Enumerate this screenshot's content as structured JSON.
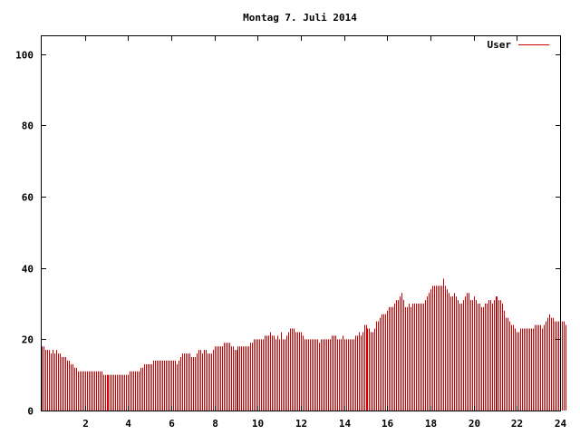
{
  "chart_data": {
    "type": "bar",
    "title": "Montag 7. Juli 2014",
    "xlabel": "",
    "ylabel": "",
    "xlim": [
      0,
      24
    ],
    "ylim": [
      0,
      105
    ],
    "x_ticks": [
      2,
      4,
      6,
      8,
      10,
      12,
      14,
      16,
      18,
      20,
      22,
      24
    ],
    "y_ticks": [
      0,
      20,
      40,
      60,
      80,
      100
    ],
    "grid": false,
    "legend": "top-right",
    "series": [
      {
        "name": "User",
        "color": "#cc0000",
        "step_minutes": 5,
        "values": [
          18,
          18,
          17,
          17,
          17,
          16,
          17,
          16,
          17,
          16,
          16,
          15,
          15,
          15,
          14,
          14,
          13,
          13,
          12,
          12,
          11,
          11,
          11,
          11,
          11,
          11,
          11,
          11,
          11,
          11,
          11,
          11,
          11,
          11,
          10,
          10,
          10,
          10,
          10,
          10,
          10,
          10,
          10,
          10,
          10,
          10,
          10,
          10,
          10,
          11,
          11,
          11,
          11,
          11,
          11,
          12,
          12,
          13,
          13,
          13,
          13,
          13,
          14,
          14,
          14,
          14,
          14,
          14,
          14,
          14,
          14,
          14,
          14,
          14,
          14,
          13,
          14,
          15,
          16,
          16,
          16,
          16,
          16,
          15,
          15,
          15,
          16,
          17,
          17,
          16,
          17,
          17,
          16,
          16,
          16,
          17,
          18,
          18,
          18,
          18,
          18,
          19,
          19,
          19,
          19,
          18,
          18,
          17,
          17,
          18,
          18,
          18,
          18,
          18,
          18,
          18,
          19,
          19,
          20,
          20,
          20,
          20,
          20,
          20,
          21,
          21,
          21,
          22,
          21,
          21,
          20,
          21,
          20,
          22,
          20,
          20,
          21,
          22,
          23,
          23,
          23,
          22,
          22,
          22,
          22,
          21,
          20,
          20,
          20,
          20,
          20,
          20,
          20,
          20,
          19,
          20,
          20,
          20,
          20,
          20,
          20,
          21,
          21,
          21,
          20,
          20,
          20,
          21,
          20,
          20,
          20,
          20,
          20,
          20,
          21,
          21,
          22,
          21,
          22,
          24,
          24,
          23,
          23,
          22,
          22,
          23,
          25,
          25,
          26,
          27,
          27,
          27,
          28,
          29,
          29,
          29,
          30,
          31,
          31,
          32,
          33,
          31,
          29,
          29,
          30,
          29,
          30,
          30,
          30,
          30,
          30,
          30,
          30,
          31,
          32,
          33,
          34,
          35,
          35,
          35,
          35,
          35,
          35,
          37,
          35,
          34,
          33,
          32,
          32,
          33,
          32,
          31,
          30,
          30,
          31,
          32,
          33,
          33,
          31,
          31,
          32,
          31,
          30,
          30,
          29,
          29,
          30,
          30,
          31,
          31,
          30,
          31,
          32,
          32,
          31,
          31,
          30,
          28,
          26,
          26,
          25,
          24,
          24,
          23,
          22,
          22,
          23,
          23,
          23,
          23,
          23,
          23,
          23,
          23,
          24,
          24,
          24,
          24,
          23,
          24,
          25,
          26,
          27,
          26,
          26,
          25,
          25,
          25,
          25,
          25,
          25,
          24
        ]
      }
    ]
  }
}
